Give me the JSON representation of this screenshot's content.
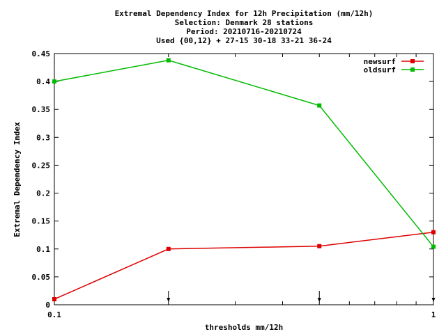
{
  "chart_data": {
    "type": "line",
    "title_lines": [
      "Extremal Dependency Index  for 12h Precipitation (mm/12h)",
      "Selection: Denmark     28 stations",
      "Period: 20210716-20210724",
      "Used {00,12} + 27-15 30-18 33-21 36-24"
    ],
    "xlabel": "thresholds mm/12h",
    "ylabel": "Extremal Dependency Index",
    "x_scale": "log",
    "xlim": [
      0.1,
      1
    ],
    "ylim": [
      0,
      0.45
    ],
    "x_ticks": [
      {
        "value": 0.1,
        "label": "0.1"
      },
      {
        "value": 1,
        "label": "1"
      }
    ],
    "y_ticks": [
      {
        "value": 0,
        "label": "0"
      },
      {
        "value": 0.05,
        "label": "0.05"
      },
      {
        "value": 0.1,
        "label": "0.1"
      },
      {
        "value": 0.15,
        "label": "0.15"
      },
      {
        "value": 0.2,
        "label": "0.2"
      },
      {
        "value": 0.25,
        "label": "0.25"
      },
      {
        "value": 0.3,
        "label": "0.3"
      },
      {
        "value": 0.35,
        "label": "0.35"
      },
      {
        "value": 0.4,
        "label": "0.4"
      },
      {
        "value": 0.45,
        "label": "0.45"
      }
    ],
    "threshold_markers": [
      0.1,
      0.2,
      0.5,
      1
    ],
    "legend_position": "top-right",
    "grid": false,
    "series": [
      {
        "name": "newsurf",
        "color": "#dd0000",
        "x": [
          0.1,
          0.2,
          0.5,
          1
        ],
        "y": [
          0.01,
          0.1,
          0.105,
          0.13
        ]
      },
      {
        "name": "oldsurf",
        "color": "#00bb00",
        "x": [
          0.1,
          0.2,
          0.5,
          1
        ],
        "y": [
          0.4,
          0.438,
          0.357,
          0.104
        ]
      }
    ]
  }
}
